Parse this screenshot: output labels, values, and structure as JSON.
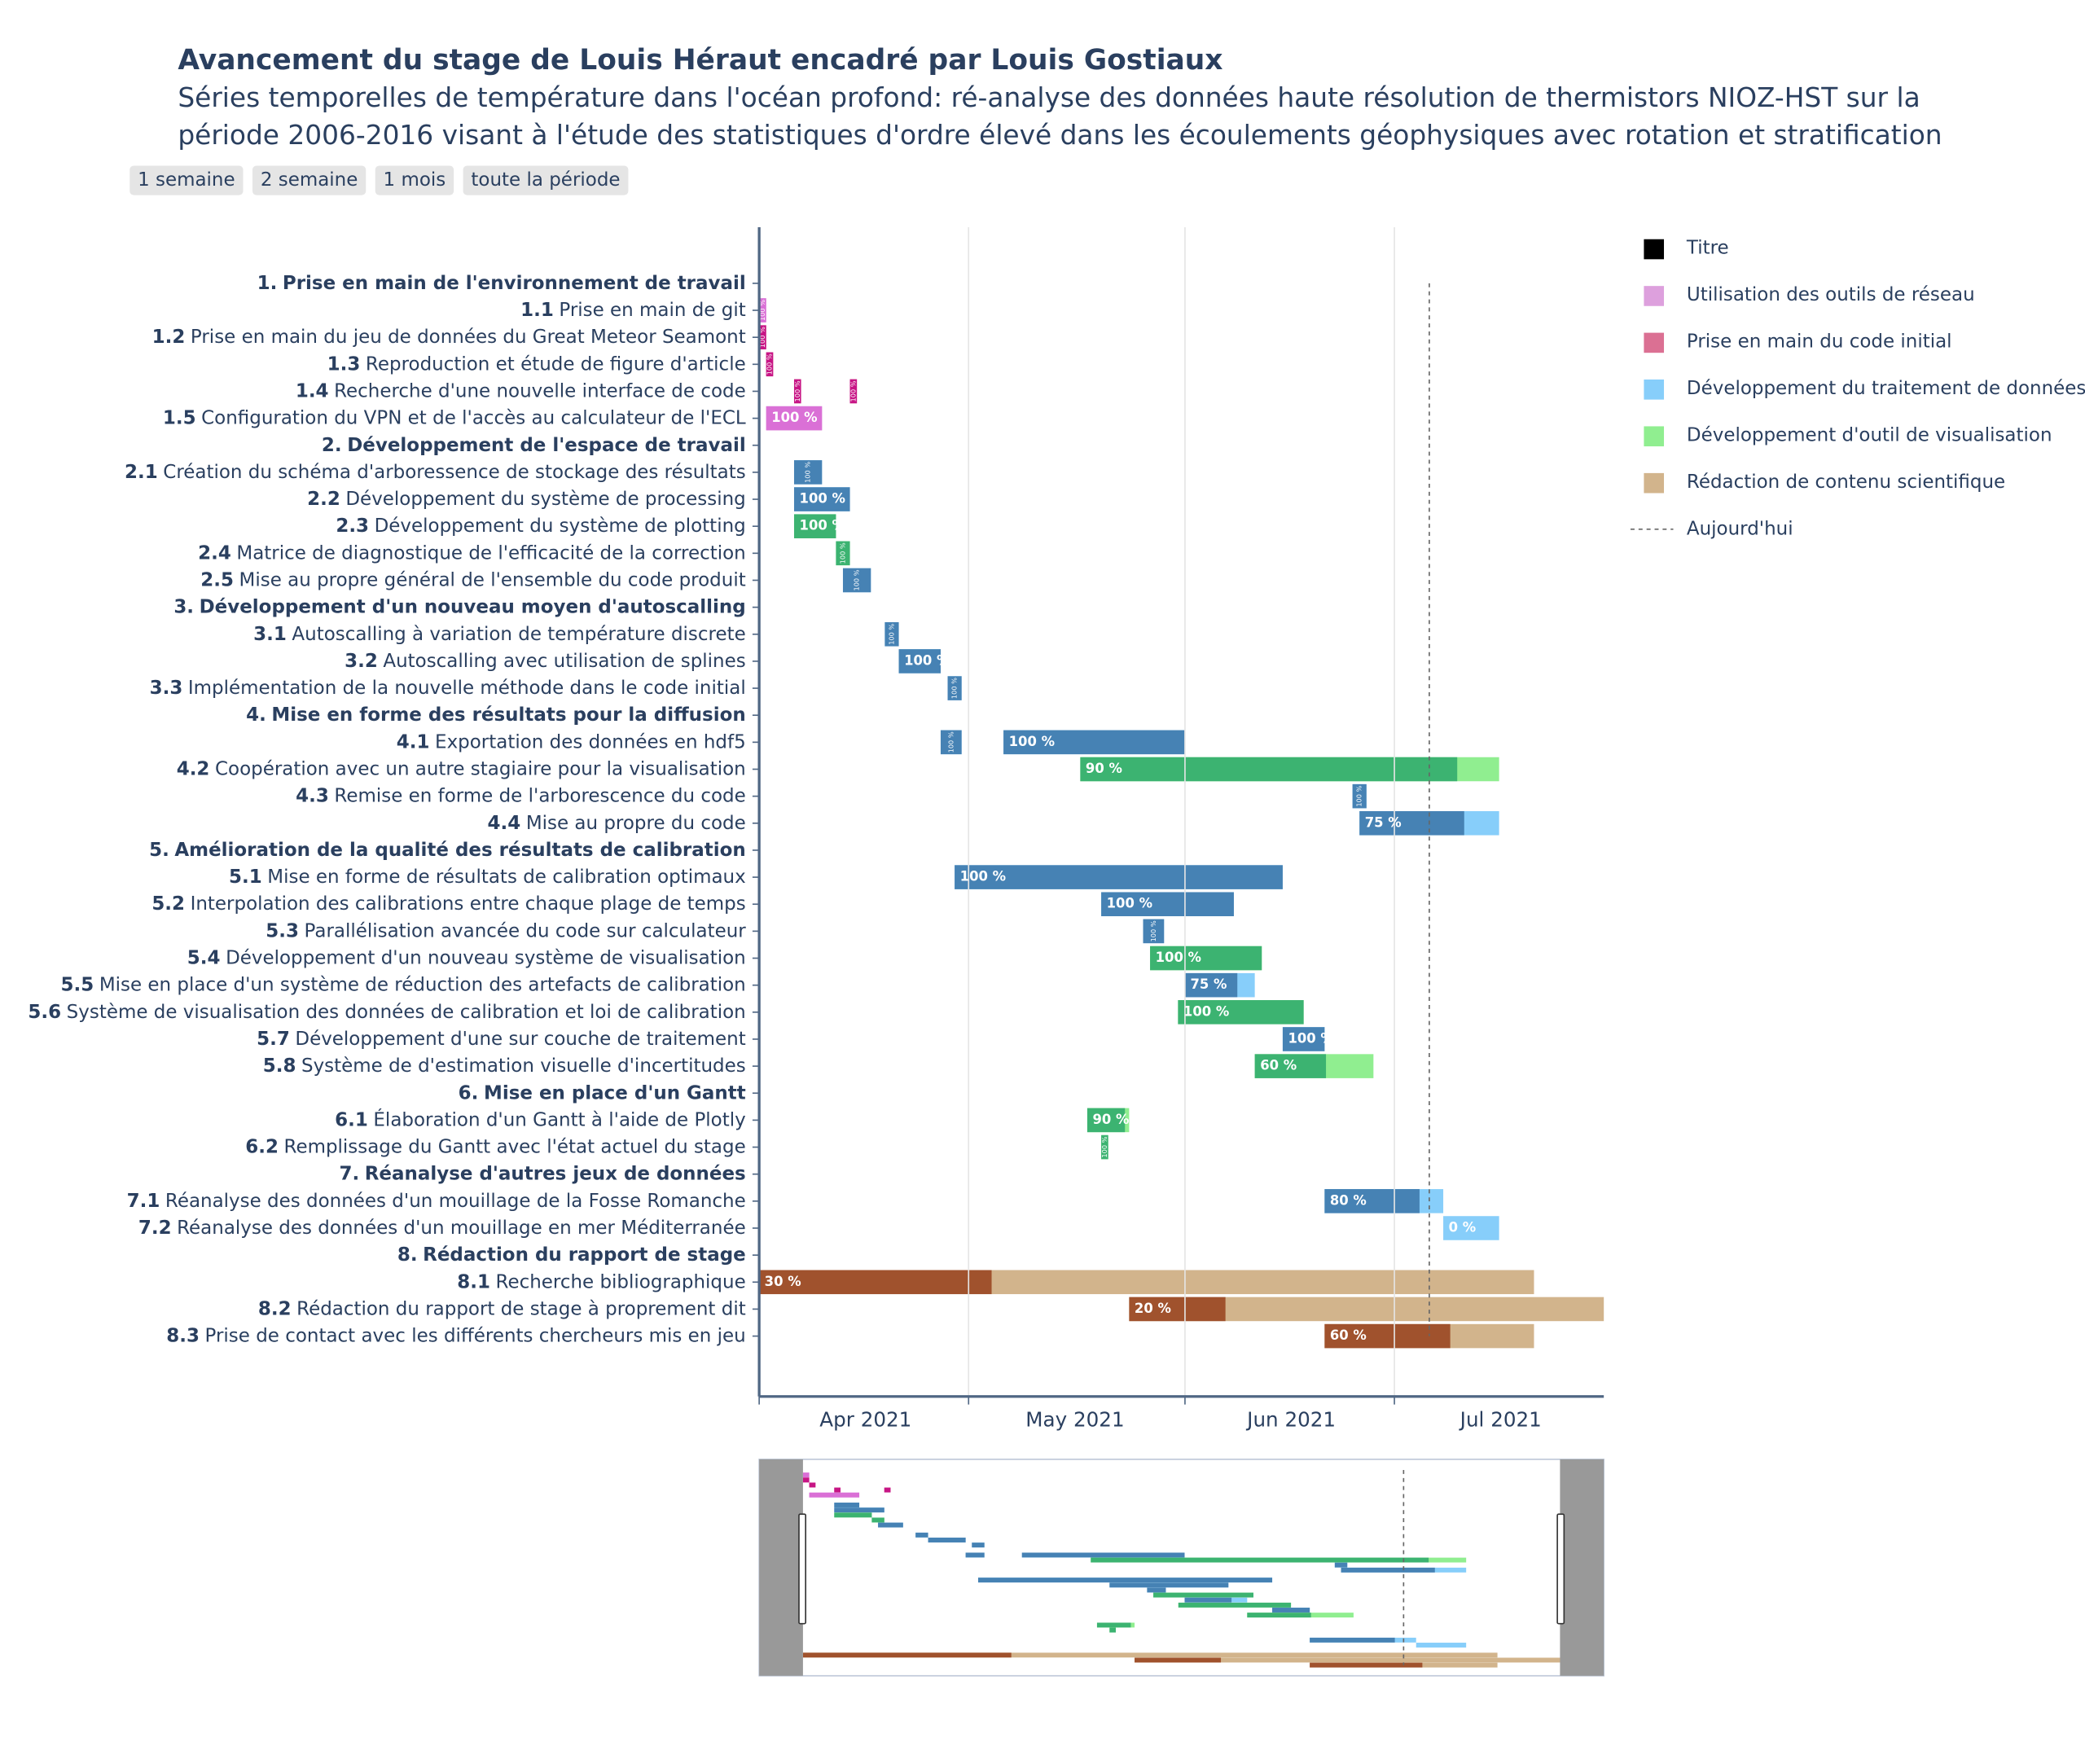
{
  "chart_data": {
    "type": "gantt",
    "title": "Avancement du stage de Louis Héraut encadré par Louis Gostiaux",
    "subtitle": [
      "Séries temporelles de température dans l'océan profond: ré-analyse des données haute résolution de thermistors NIOZ-HST sur la",
      "période 2006-2016 visant à l'étude des statistiques d'ordre élevé dans les écoulements géophysiques avec rotation et stratification"
    ],
    "buttons": [
      "1 semaine",
      "2 semaine",
      "1 mois",
      "toute la période"
    ],
    "categories": [
      {
        "name": "Titre",
        "color": "#000000"
      },
      {
        "name": "Utilisation des outils de réseau",
        "color": "#dda0dd",
        "done_color": "#da70d6"
      },
      {
        "name": "Prise en main du code initial",
        "color": "#db7093",
        "done_color": "#c71585"
      },
      {
        "name": "Développement du traitement de données",
        "color": "#87cefa",
        "done_color": "#4682b4"
      },
      {
        "name": "Développement d'outil de visualisation",
        "color": "#90ee90",
        "done_color": "#3cb371"
      },
      {
        "name": "Rédaction de contenu scientifique",
        "color": "#d2b48c",
        "done_color": "#a0522d"
      }
    ],
    "today": {
      "date": "2021-07-06",
      "label": "Aujourd'hui"
    },
    "xlim": [
      "2021-04-01",
      "2021-07-31"
    ],
    "xticks": [
      {
        "value": "2021-04-01",
        "label": "Apr 2021"
      },
      {
        "value": "2021-05-01",
        "label": "May 2021"
      },
      {
        "value": "2021-06-01",
        "label": "Jun 2021"
      },
      {
        "value": "2021-07-01",
        "label": "Jul 2021"
      }
    ],
    "grid": true,
    "rangeslider": {
      "xlim": [
        "2021-03-25",
        "2021-08-07"
      ]
    },
    "rows": [
      {
        "id": "1.",
        "label": "Prise en main de l'environnement de travail",
        "category": "Titre",
        "bars": []
      },
      {
        "id": "1.1",
        "label": "Prise en main de git",
        "category": "Utilisation des outils de réseau",
        "bars": [
          {
            "start": "2021-04-01",
            "end": "2021-04-02",
            "progress": 100,
            "progress_label": "100 %"
          }
        ]
      },
      {
        "id": "1.2",
        "label": "Prise en main du jeu de données du Great Meteor Seamont",
        "category": "Prise en main du code initial",
        "bars": [
          {
            "start": "2021-04-01",
            "end": "2021-04-02",
            "progress": 100,
            "progress_label": "100 %"
          }
        ]
      },
      {
        "id": "1.3",
        "label": "Reproduction et étude de figure d'article",
        "category": "Prise en main du code initial",
        "bars": [
          {
            "start": "2021-04-02",
            "end": "2021-04-03",
            "progress": 100,
            "progress_label": "100 %"
          }
        ]
      },
      {
        "id": "1.4",
        "label": "Recherche d'une nouvelle interface de code",
        "category": "Prise en main du code initial",
        "bars": [
          {
            "start": "2021-04-06",
            "end": "2021-04-07",
            "progress": 100,
            "progress_label": "100 %"
          },
          {
            "start": "2021-04-14",
            "end": "2021-04-15",
            "progress": 100,
            "progress_label": "100 %"
          }
        ]
      },
      {
        "id": "1.5",
        "label": "Configuration du VPN et de l'accès au calculateur de l'ECL",
        "category": "Utilisation des outils de réseau",
        "bars": [
          {
            "start": "2021-04-02",
            "end": "2021-04-10",
            "progress": 100,
            "progress_label": "100 %"
          }
        ]
      },
      {
        "id": "2.",
        "label": "Développement de l'espace de travail",
        "category": "Titre",
        "bars": []
      },
      {
        "id": "2.1",
        "label": "Création du schéma d'arboressence de stockage des résultats",
        "category": "Développement du traitement de données",
        "bars": [
          {
            "start": "2021-04-06",
            "end": "2021-04-10",
            "progress": 100,
            "progress_label": "100 %"
          }
        ]
      },
      {
        "id": "2.2",
        "label": "Développement du système de processing",
        "category": "Développement du traitement de données",
        "bars": [
          {
            "start": "2021-04-06",
            "end": "2021-04-14",
            "progress": 100,
            "progress_label": "100 %"
          }
        ]
      },
      {
        "id": "2.3",
        "label": "Développement du système de plotting",
        "category": "Développement d'outil de visualisation",
        "bars": [
          {
            "start": "2021-04-06",
            "end": "2021-04-12",
            "progress": 100,
            "progress_label": "100 %"
          }
        ]
      },
      {
        "id": "2.4",
        "label": "Matrice de diagnostique de l'efficacité de la correction",
        "category": "Développement d'outil de visualisation",
        "bars": [
          {
            "start": "2021-04-12",
            "end": "2021-04-14",
            "progress": 100,
            "progress_label": "100 %"
          }
        ]
      },
      {
        "id": "2.5",
        "label": "Mise au propre général de l'ensemble du code produit",
        "category": "Développement du traitement de données",
        "bars": [
          {
            "start": "2021-04-13",
            "end": "2021-04-17",
            "progress": 100,
            "progress_label": "100 %"
          }
        ]
      },
      {
        "id": "3.",
        "label": "Développement d'un nouveau moyen d'autoscalling",
        "category": "Titre",
        "bars": []
      },
      {
        "id": "3.1",
        "label": "Autoscalling à variation de température discrete",
        "category": "Développement du traitement de données",
        "bars": [
          {
            "start": "2021-04-19",
            "end": "2021-04-21",
            "progress": 100,
            "progress_label": "100 %"
          }
        ]
      },
      {
        "id": "3.2",
        "label": "Autoscalling avec utilisation de splines",
        "category": "Développement du traitement de données",
        "bars": [
          {
            "start": "2021-04-21",
            "end": "2021-04-27",
            "progress": 100,
            "progress_label": "100 %"
          }
        ]
      },
      {
        "id": "3.3",
        "label": "Implémentation de la nouvelle méthode dans le code initial",
        "category": "Développement du traitement de données",
        "bars": [
          {
            "start": "2021-04-28",
            "end": "2021-04-30",
            "progress": 100,
            "progress_label": "100 %"
          }
        ]
      },
      {
        "id": "4.",
        "label": "Mise en forme des résultats pour la diffusion",
        "category": "Titre",
        "bars": []
      },
      {
        "id": "4.1",
        "label": "Exportation des données en hdf5",
        "category": "Développement du traitement de données",
        "bars": [
          {
            "start": "2021-04-27",
            "end": "2021-04-30",
            "progress": 100,
            "progress_label": "100 %"
          },
          {
            "start": "2021-05-06",
            "end": "2021-06-01",
            "progress": 100,
            "progress_label": "100 %"
          }
        ]
      },
      {
        "id": "4.2",
        "label": "Coopération avec un autre stagiaire pour la visualisation",
        "category": "Développement d'outil de visualisation",
        "bars": [
          {
            "start": "2021-05-17",
            "end": "2021-07-16",
            "progress": 90,
            "progress_label": "90 %"
          }
        ]
      },
      {
        "id": "4.3",
        "label": "Remise en forme de l'arborescence du code",
        "category": "Développement du traitement de données",
        "bars": [
          {
            "start": "2021-06-25",
            "end": "2021-06-27",
            "progress": 100,
            "progress_label": "100 %"
          }
        ]
      },
      {
        "id": "4.4",
        "label": "Mise au propre du code",
        "category": "Développement du traitement de données",
        "bars": [
          {
            "start": "2021-06-26",
            "end": "2021-07-16",
            "progress": 75,
            "progress_label": "75 %"
          }
        ]
      },
      {
        "id": "5.",
        "label": "Amélioration de la qualité des résultats de calibration",
        "category": "Titre",
        "bars": []
      },
      {
        "id": "5.1",
        "label": "Mise en forme de résultats de calibration optimaux",
        "category": "Développement du traitement de données",
        "bars": [
          {
            "start": "2021-04-29",
            "end": "2021-06-15",
            "progress": 100,
            "progress_label": "100 %"
          }
        ]
      },
      {
        "id": "5.2",
        "label": "Interpolation des calibrations entre chaque plage de temps",
        "category": "Développement du traitement de données",
        "bars": [
          {
            "start": "2021-05-20",
            "end": "2021-06-08",
            "progress": 100,
            "progress_label": "100 %"
          }
        ]
      },
      {
        "id": "5.3",
        "label": "Parallélisation avancée du code sur calculateur",
        "category": "Développement du traitement de données",
        "bars": [
          {
            "start": "2021-05-26",
            "end": "2021-05-29",
            "progress": 100,
            "progress_label": "100 %"
          }
        ]
      },
      {
        "id": "5.4",
        "label": "Développement d'un nouveau système de visualisation",
        "category": "Développement d'outil de visualisation",
        "bars": [
          {
            "start": "2021-05-27",
            "end": "2021-06-12",
            "progress": 100,
            "progress_label": "100 %"
          }
        ]
      },
      {
        "id": "5.5",
        "label": "Mise en place d'un système de réduction des artefacts de calibration",
        "category": "Développement du traitement de données",
        "bars": [
          {
            "start": "2021-06-01",
            "end": "2021-06-11",
            "progress": 75,
            "progress_label": "75 %"
          }
        ]
      },
      {
        "id": "5.6",
        "label": "Système de visualisation des données de calibration et loi de calibration",
        "category": "Développement d'outil de visualisation",
        "bars": [
          {
            "start": "2021-05-31",
            "end": "2021-06-18",
            "progress": 100,
            "progress_label": "100 %"
          }
        ]
      },
      {
        "id": "5.7",
        "label": "Développement d'une sur couche de traitement",
        "category": "Développement du traitement de données",
        "bars": [
          {
            "start": "2021-06-15",
            "end": "2021-06-21",
            "progress": 100,
            "progress_label": "100 %"
          }
        ]
      },
      {
        "id": "5.8",
        "label": "Système de d'estimation visuelle d'incertitudes",
        "category": "Développement d'outil de visualisation",
        "bars": [
          {
            "start": "2021-06-11",
            "end": "2021-06-28",
            "progress": 60,
            "progress_label": "60 %"
          }
        ]
      },
      {
        "id": "6.",
        "label": "Mise en place d'un Gantt",
        "category": "Titre",
        "bars": []
      },
      {
        "id": "6.1",
        "label": "Élaboration d'un Gantt à l'aide de Plotly",
        "category": "Développement d'outil de visualisation",
        "bars": [
          {
            "start": "2021-05-18",
            "end": "2021-05-24",
            "progress": 90,
            "progress_label": "90 %"
          }
        ]
      },
      {
        "id": "6.2",
        "label": "Remplissage du Gantt avec l'état actuel du stage",
        "category": "Développement d'outil de visualisation",
        "bars": [
          {
            "start": "2021-05-20",
            "end": "2021-05-21",
            "progress": 100,
            "progress_label": "100 %"
          }
        ]
      },
      {
        "id": "7.",
        "label": "Réanalyse d'autres jeux de données",
        "category": "Titre",
        "bars": []
      },
      {
        "id": "7.1",
        "label": "Réanalyse des données d'un mouillage de la Fosse Romanche",
        "category": "Développement du traitement de données",
        "bars": [
          {
            "start": "2021-06-21",
            "end": "2021-07-08",
            "progress": 80,
            "progress_label": "80 %"
          }
        ]
      },
      {
        "id": "7.2",
        "label": "Réanalyse des données d'un mouillage en mer Méditerranée",
        "category": "Développement du traitement de données",
        "bars": [
          {
            "start": "2021-07-08",
            "end": "2021-07-16",
            "progress": 0,
            "progress_label": "0 %"
          }
        ]
      },
      {
        "id": "8.",
        "label": "Rédaction du rapport de stage",
        "category": "Titre",
        "bars": []
      },
      {
        "id": "8.1",
        "label": "Recherche bibliographique",
        "category": "Rédaction de contenu scientifique",
        "bars": [
          {
            "start": "2021-04-01",
            "end": "2021-07-21",
            "progress": 30,
            "progress_label": "30 %"
          }
        ]
      },
      {
        "id": "8.2",
        "label": "Rédaction du rapport de stage à proprement dit",
        "category": "Rédaction de contenu scientifique",
        "bars": [
          {
            "start": "2021-05-24",
            "end": "2021-08-01",
            "progress": 20,
            "progress_label": "20 %"
          }
        ]
      },
      {
        "id": "8.3",
        "label": "Prise de contact avec les différents chercheurs mis en jeu",
        "category": "Rédaction de contenu scientifique",
        "bars": [
          {
            "start": "2021-06-21",
            "end": "2021-07-21",
            "progress": 60,
            "progress_label": "60 %"
          }
        ]
      }
    ]
  }
}
